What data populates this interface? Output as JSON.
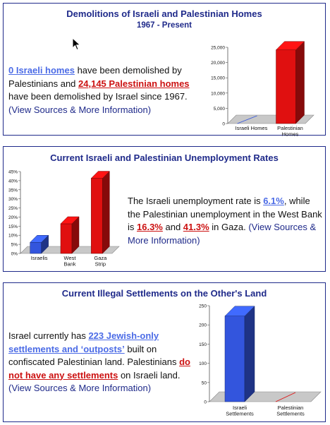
{
  "panels": [
    {
      "title": "Demolitions of Israeli and Palestinian Homes",
      "subtitle": "1967 - Present",
      "text": {
        "link1": "0 Israeli homes",
        "t1": " have been demolished by Palestinians and ",
        "link2": "24,145 Palestinian homes",
        "t2": " have been demolished by Israel since 1967. ",
        "source": "(View Sources & More Information)"
      },
      "chart_data": {
        "type": "bar",
        "categories": [
          "Israeli Homes",
          "Palestinian Homes"
        ],
        "values": [
          0,
          24145
        ],
        "yticks": [
          "0",
          "5,000",
          "10,000",
          "15,000",
          "20,000",
          "25,000"
        ],
        "ylim": [
          0,
          25000
        ],
        "colors": [
          "#3355dd",
          "#e01010"
        ]
      }
    },
    {
      "title": "Current Israeli and Palestinian Unemployment Rates",
      "text": {
        "t1": "The Israeli unemployment rate is ",
        "link1": "6.1%",
        "t2": ", while the Palestinian unemployment in the West Bank is ",
        "link2": "16.3%",
        "t3": " and ",
        "link3": "41.3%",
        "t4": " in Gaza. ",
        "source": "(View Sources & More Information)"
      },
      "chart_data": {
        "type": "bar",
        "categories": [
          "Israelis",
          "West Bank",
          "Gaza Strip"
        ],
        "values": [
          6.1,
          16.3,
          41.3
        ],
        "yticks": [
          "0%",
          "5%",
          "10%",
          "15%",
          "20%",
          "25%",
          "30%",
          "35%",
          "40%",
          "45%"
        ],
        "ylim": [
          0,
          45
        ],
        "colors": [
          "#3355dd",
          "#e01010",
          "#e01010"
        ]
      }
    },
    {
      "title": "Current Illegal Settlements on the Other's Land",
      "text": {
        "t1": "Israel currently has ",
        "link1": "223 Jewish-only settlements and ‘outposts’",
        "t2": " built on confiscated Palestinian land. Palestinians ",
        "link2": "do not have any settlements",
        "t3": " on Israeli land. ",
        "source": "(View Sources & More Information)"
      },
      "chart_data": {
        "type": "bar",
        "categories": [
          "Israeli Settlements",
          "Palestinian Settlements"
        ],
        "values": [
          223,
          0
        ],
        "yticks": [
          "0",
          "50",
          "100",
          "150",
          "200",
          "250"
        ],
        "ylim": [
          0,
          250
        ],
        "colors": [
          "#3355dd",
          "#e01010"
        ]
      }
    }
  ]
}
